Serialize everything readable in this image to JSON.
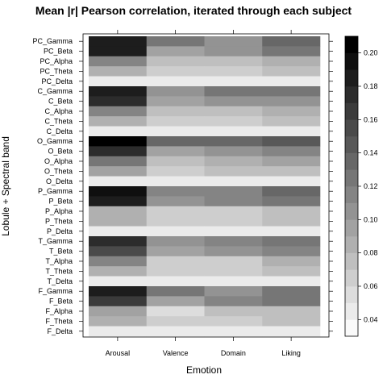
{
  "chart_data": {
    "type": "heatmap",
    "title": "Mean |r| Pearson correlation, iterated through each subject",
    "xlabel": "Emotion",
    "ylabel": "Lobule + Spectral band",
    "x_categories": [
      "Arousal",
      "Valence",
      "Domain",
      "Liking"
    ],
    "y_categories": [
      "PC_Gamma",
      "PC_Beta",
      "PC_Alpha",
      "PC_Theta",
      "PC_Delta",
      "C_Gamma",
      "C_Beta",
      "C_Alpha",
      "C_Theta",
      "C_Delta",
      "O_Gamma",
      "O_Beta",
      "O_Alpha",
      "O_Theta",
      "O_Delta",
      "P_Gamma",
      "P_Beta",
      "P_Alpha",
      "P_Theta",
      "P_Delta",
      "T_Gamma",
      "T_Beta",
      "T_Alpha",
      "T_Theta",
      "T_Delta",
      "F_Gamma",
      "F_Beta",
      "F_Alpha",
      "F_Theta",
      "F_Delta"
    ],
    "values": [
      [
        0.185,
        0.125,
        0.105,
        0.135
      ],
      [
        0.185,
        0.095,
        0.105,
        0.125
      ],
      [
        0.115,
        0.075,
        0.075,
        0.085
      ],
      [
        0.085,
        0.065,
        0.065,
        0.075
      ],
      [
        0.04,
        0.04,
        0.04,
        0.04
      ],
      [
        0.185,
        0.105,
        0.12,
        0.125
      ],
      [
        0.175,
        0.095,
        0.1,
        0.105
      ],
      [
        0.115,
        0.075,
        0.075,
        0.085
      ],
      [
        0.085,
        0.065,
        0.065,
        0.07
      ],
      [
        0.04,
        0.04,
        0.04,
        0.04
      ],
      [
        0.215,
        0.135,
        0.13,
        0.14
      ],
      [
        0.175,
        0.095,
        0.105,
        0.11
      ],
      [
        0.125,
        0.075,
        0.085,
        0.09
      ],
      [
        0.095,
        0.065,
        0.07,
        0.075
      ],
      [
        0.04,
        0.04,
        0.04,
        0.04
      ],
      [
        0.195,
        0.115,
        0.11,
        0.135
      ],
      [
        0.185,
        0.105,
        0.115,
        0.125
      ],
      [
        0.085,
        0.065,
        0.065,
        0.075
      ],
      [
        0.085,
        0.065,
        0.065,
        0.075
      ],
      [
        0.04,
        0.04,
        0.04,
        0.04
      ],
      [
        0.175,
        0.105,
        0.115,
        0.125
      ],
      [
        0.155,
        0.095,
        0.105,
        0.115
      ],
      [
        0.115,
        0.065,
        0.065,
        0.085
      ],
      [
        0.085,
        0.065,
        0.065,
        0.075
      ],
      [
        0.04,
        0.04,
        0.04,
        0.04
      ],
      [
        0.185,
        0.125,
        0.105,
        0.125
      ],
      [
        0.165,
        0.095,
        0.115,
        0.12
      ],
      [
        0.095,
        0.055,
        0.07,
        0.075
      ],
      [
        0.085,
        0.065,
        0.065,
        0.075
      ],
      [
        0.04,
        0.04,
        0.04,
        0.04
      ]
    ],
    "zlim": [
      0.03,
      0.21
    ],
    "colorbar_breaks": [
      0.03,
      0.04,
      0.05,
      0.06,
      0.07,
      0.08,
      0.09,
      0.1,
      0.11,
      0.12,
      0.13,
      0.14,
      0.15,
      0.16,
      0.17,
      0.18,
      0.19,
      0.2,
      0.21
    ],
    "colorbar_ticks": [
      "0.04",
      "0.06",
      "0.08",
      "0.10",
      "0.12",
      "0.14",
      "0.16",
      "0.18",
      "0.20"
    ],
    "colorscale": "white-to-black grayscale",
    "grid": false,
    "legend_position": "right"
  }
}
